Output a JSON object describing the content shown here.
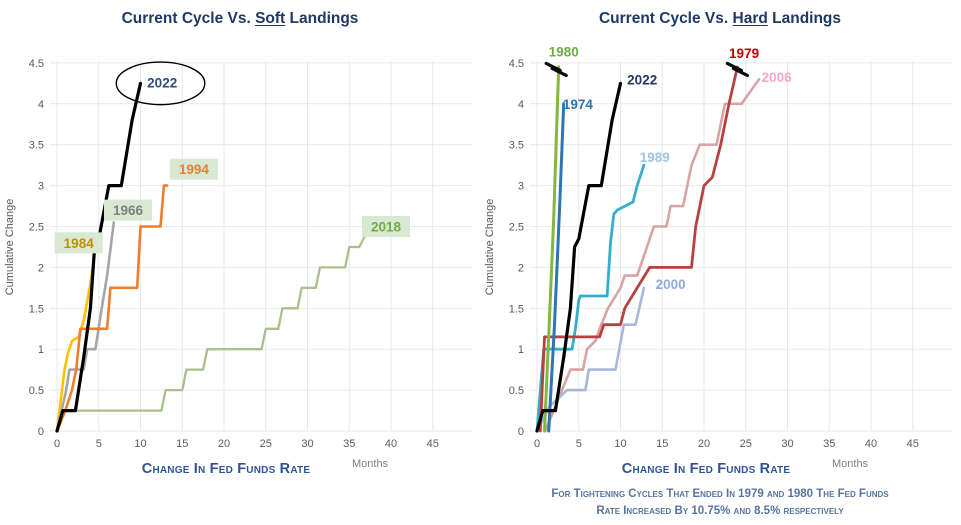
{
  "accent_colors": {
    "title_navy": "#1f3864",
    "axis_title_blue": "#2e5496",
    "tick_gray": "#595959",
    "grid_gray": "#e9e9e9",
    "footnote_blue": "#56749f",
    "highlight_green": "#d9e8d2"
  },
  "chart_data": [
    {
      "type": "line",
      "title": {
        "prefix": "Current Cycle Vs. ",
        "underlined": "Soft",
        "suffix": " Landings"
      },
      "ylabel": "Cumulative Change",
      "xlabel": "Change In Fed Funds Rate",
      "x_unit_label": "Months",
      "ylim": [
        0,
        4.5
      ],
      "xlim": [
        0,
        45
      ],
      "y_ticks": [
        0,
        0.5,
        1,
        1.5,
        2,
        2.5,
        3,
        3.5,
        4,
        4.5
      ],
      "x_ticks": [
        0,
        5,
        10,
        15,
        20,
        25,
        30,
        35,
        40,
        45
      ],
      "grid": "on",
      "series": [
        {
          "name": "2018",
          "line_color": "#a9c08c",
          "width": 2.3,
          "label": {
            "text": "2018",
            "color": "#70ad47",
            "bg": "#d9e8d2",
            "x": 39.4,
            "y": 2.5
          },
          "points": [
            [
              0,
              0
            ],
            [
              0.8,
              0.25
            ],
            [
              12.5,
              0.25
            ],
            [
              13,
              0.5
            ],
            [
              15,
              0.5
            ],
            [
              15.5,
              0.75
            ],
            [
              17.5,
              0.75
            ],
            [
              18,
              1.0
            ],
            [
              24.5,
              1.0
            ],
            [
              25,
              1.25
            ],
            [
              26.5,
              1.25
            ],
            [
              27,
              1.5
            ],
            [
              28.8,
              1.5
            ],
            [
              29.3,
              1.75
            ],
            [
              31,
              1.75
            ],
            [
              31.5,
              2.0
            ],
            [
              34.5,
              2.0
            ],
            [
              35,
              2.25
            ],
            [
              36.2,
              2.25
            ],
            [
              37.2,
              2.45
            ]
          ]
        },
        {
          "name": "1984",
          "line_color": "#ffc000",
          "width": 2.6,
          "label": {
            "text": "1984",
            "color": "#bf9000",
            "bg": "#d9e8d2",
            "x": 2.6,
            "y": 2.3
          },
          "points": [
            [
              0,
              0
            ],
            [
              0.9,
              0.75
            ],
            [
              1.3,
              0.95
            ],
            [
              1.8,
              1.1
            ],
            [
              2.6,
              1.15
            ],
            [
              3.2,
              1.35
            ],
            [
              4.0,
              1.8
            ],
            [
              4.7,
              2.3
            ]
          ]
        },
        {
          "name": "1966",
          "line_color": "#a6a6a6",
          "width": 2.6,
          "label": {
            "text": "1966",
            "color": "#7f7f7f",
            "bg": "#d9e8d2",
            "x": 8.5,
            "y": 2.7
          },
          "points": [
            [
              0,
              0
            ],
            [
              1.1,
              0.5
            ],
            [
              1.5,
              0.75
            ],
            [
              3.2,
              0.75
            ],
            [
              3.6,
              1.0
            ],
            [
              4.6,
              1.0
            ],
            [
              5.2,
              1.4
            ],
            [
              6.0,
              1.9
            ],
            [
              6.8,
              2.55
            ]
          ]
        },
        {
          "name": "1994",
          "line_color": "#ed7d31",
          "width": 2.6,
          "label": {
            "text": "1994",
            "color": "#ed7d31",
            "bg": "#d9e8d2",
            "x": 16.4,
            "y": 3.2
          },
          "points": [
            [
              0,
              0
            ],
            [
              1,
              0.25
            ],
            [
              1.8,
              0.5
            ],
            [
              2.3,
              0.75
            ],
            [
              2.8,
              1.25
            ],
            [
              6,
              1.25
            ],
            [
              6.4,
              1.75
            ],
            [
              9.6,
              1.75
            ],
            [
              10,
              2.5
            ],
            [
              12.4,
              2.5
            ],
            [
              12.8,
              3.0
            ],
            [
              13.2,
              3.0
            ]
          ]
        },
        {
          "name": "2022",
          "line_color": "#000000",
          "width": 3.2,
          "label": {
            "text": "2022",
            "color": "#2e4d7b",
            "x": 12.6,
            "y": 4.26
          },
          "points": [
            [
              0,
              0
            ],
            [
              0.7,
              0.25
            ],
            [
              2.2,
              0.25
            ],
            [
              3.2,
              0.9
            ],
            [
              4,
              1.5
            ],
            [
              4.5,
              2.25
            ],
            [
              5,
              2.35
            ],
            [
              6.2,
              3.0
            ],
            [
              7.7,
              3.0
            ],
            [
              9,
              3.8
            ],
            [
              10,
              4.25
            ]
          ]
        }
      ],
      "annotations": {
        "ellipse": {
          "x": 12.4,
          "y": 4.25,
          "rx": 5.3,
          "ry": 0.26
        },
        "breaks": []
      }
    },
    {
      "type": "line",
      "title": {
        "prefix": "Current Cycle Vs. ",
        "underlined": "Hard",
        "suffix": " Landings"
      },
      "ylabel": "Cumulative Change",
      "xlabel": "Change In Fed Funds Rate",
      "x_unit_label": "Months",
      "ylim": [
        0,
        4.5
      ],
      "xlim": [
        0,
        45
      ],
      "y_ticks": [
        0,
        0.5,
        1,
        1.5,
        2,
        2.5,
        3,
        3.5,
        4,
        4.5
      ],
      "x_ticks": [
        0,
        5,
        10,
        15,
        20,
        25,
        30,
        35,
        40,
        45
      ],
      "grid": "on",
      "footnote": [
        "For Tightening Cycles That Ended In 1979 and 1980 The Fed Funds",
        "Rate Increased By 10.75% and 8.5% respectively"
      ],
      "series": [
        {
          "name": "2006",
          "line_color": "#d9a3a3",
          "width": 2.6,
          "label": {
            "text": "2006",
            "color": "#f7a8c8",
            "x": 28.7,
            "y": 4.33
          },
          "points": [
            [
              1,
              0
            ],
            [
              2,
              0.25
            ],
            [
              3,
              0.5
            ],
            [
              4,
              0.75
            ],
            [
              5.5,
              0.75
            ],
            [
              6,
              1.0
            ],
            [
              7,
              1.1
            ],
            [
              7.5,
              1.25
            ],
            [
              8.5,
              1.5
            ],
            [
              10,
              1.75
            ],
            [
              10.5,
              1.9
            ],
            [
              12,
              1.9
            ],
            [
              13,
              2.2
            ],
            [
              14,
              2.5
            ],
            [
              15.5,
              2.5
            ],
            [
              16,
              2.75
            ],
            [
              17.5,
              2.75
            ],
            [
              18,
              3.0
            ],
            [
              18.5,
              3.25
            ],
            [
              19.5,
              3.5
            ],
            [
              21.5,
              3.5
            ],
            [
              22,
              3.75
            ],
            [
              22.5,
              4.0
            ],
            [
              24.5,
              4.0
            ],
            [
              26.6,
              4.3
            ]
          ]
        },
        {
          "name": "2000",
          "line_color": "#a6b8d9",
          "width": 2.6,
          "label": {
            "text": "2000",
            "color": "#8faadc",
            "x": 16.0,
            "y": 1.8
          },
          "points": [
            [
              0,
              0
            ],
            [
              1.5,
              0.3
            ],
            [
              3.6,
              0.5
            ],
            [
              5.8,
              0.5
            ],
            [
              6.2,
              0.75
            ],
            [
              9.4,
              0.75
            ],
            [
              10.4,
              1.3
            ],
            [
              11.8,
              1.3
            ],
            [
              12.8,
              1.75
            ]
          ]
        },
        {
          "name": "1989",
          "line_color": "#35aecb",
          "width": 2.8,
          "label": {
            "text": "1989",
            "color": "#9dc3e6",
            "x": 14.1,
            "y": 3.35
          },
          "points": [
            [
              0,
              0
            ],
            [
              0.8,
              1.0
            ],
            [
              4.2,
              1.0
            ],
            [
              4.6,
              1.25
            ],
            [
              5,
              1.6
            ],
            [
              5.2,
              1.65
            ],
            [
              8.4,
              1.65
            ],
            [
              8.8,
              2.3
            ],
            [
              9.2,
              2.65
            ],
            [
              9.6,
              2.7
            ],
            [
              11.5,
              2.8
            ],
            [
              12,
              3.0
            ],
            [
              12.8,
              3.25
            ]
          ]
        },
        {
          "name": "1979",
          "line_color": "#b94040",
          "width": 2.8,
          "label": {
            "text": "1979",
            "color": "#c00000",
            "x": 24.8,
            "y": 4.62
          },
          "points": [
            [
              0.4,
              0
            ],
            [
              0.9,
              1.15
            ],
            [
              7.5,
              1.15
            ],
            [
              8,
              1.3
            ],
            [
              10,
              1.3
            ],
            [
              10.5,
              1.5
            ],
            [
              13.5,
              2.0
            ],
            [
              18.5,
              2.0
            ],
            [
              19,
              2.5
            ],
            [
              20,
              3.0
            ],
            [
              21,
              3.1
            ],
            [
              22,
              3.5
            ],
            [
              23,
              4.0
            ],
            [
              24,
              4.45
            ]
          ]
        },
        {
          "name": "1974",
          "line_color": "#2e75b6",
          "width": 3.0,
          "label": {
            "text": "1974",
            "color": "#2e75b6",
            "x": 4.9,
            "y": 4.0
          },
          "points": [
            [
              1.4,
              0
            ],
            [
              2.1,
              1.3
            ],
            [
              2.7,
              2.7
            ],
            [
              3.2,
              4.0
            ]
          ]
        },
        {
          "name": "1980",
          "line_color": "#85b440",
          "width": 3.0,
          "label": {
            "text": "1980",
            "color": "#70ad47",
            "x": 3.2,
            "y": 4.64
          },
          "points": [
            [
              0.9,
              0
            ],
            [
              1.4,
              1.15
            ],
            [
              2.0,
              2.6
            ],
            [
              2.6,
              4.45
            ]
          ]
        },
        {
          "name": "2022",
          "line_color": "#000000",
          "width": 3.2,
          "label": {
            "text": "2022",
            "color": "#1f3864",
            "x": 12.6,
            "y": 4.3
          },
          "points": [
            [
              0,
              0
            ],
            [
              0.7,
              0.25
            ],
            [
              2.2,
              0.25
            ],
            [
              3.2,
              0.9
            ],
            [
              4,
              1.5
            ],
            [
              4.5,
              2.25
            ],
            [
              5,
              2.35
            ],
            [
              6.2,
              3.0
            ],
            [
              7.7,
              3.0
            ],
            [
              9,
              3.8
            ],
            [
              10,
              4.25
            ]
          ]
        }
      ],
      "annotations": {
        "breaks": [
          {
            "x": 2.3,
            "y": 4.42
          },
          {
            "x": 24.0,
            "y": 4.42
          }
        ]
      }
    }
  ]
}
